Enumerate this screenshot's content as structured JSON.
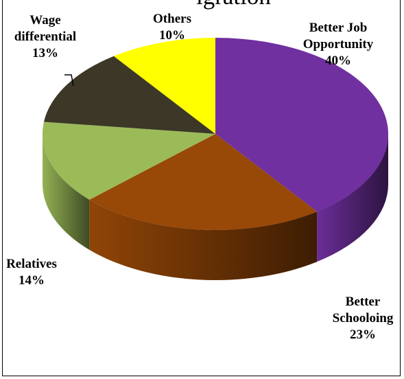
{
  "chart_data": {
    "type": "pie",
    "style": "3d",
    "title": "",
    "cut_off_title_text": "igration",
    "slices": [
      {
        "label_lines": [
          "Better Job",
          "Opportunity"
        ],
        "percent_label": "40%",
        "value": 40,
        "color": "#7030a0"
      },
      {
        "label_lines": [
          "Better",
          "Schooloing"
        ],
        "percent_label": "23%",
        "value": 23,
        "color": "#984807"
      },
      {
        "label_lines": [
          "Relatives"
        ],
        "percent_label": "14%",
        "value": 14,
        "color": "#9bbb59"
      },
      {
        "label_lines": [
          "Wage",
          "differential"
        ],
        "percent_label": "13%",
        "value": 13,
        "color": "#3d3727"
      },
      {
        "label_lines": [
          "Others"
        ],
        "percent_label": "10%",
        "value": 10,
        "color": "#ffff00"
      }
    ],
    "start_angle_deg": -90,
    "direction": "clockwise",
    "legend": "none"
  }
}
